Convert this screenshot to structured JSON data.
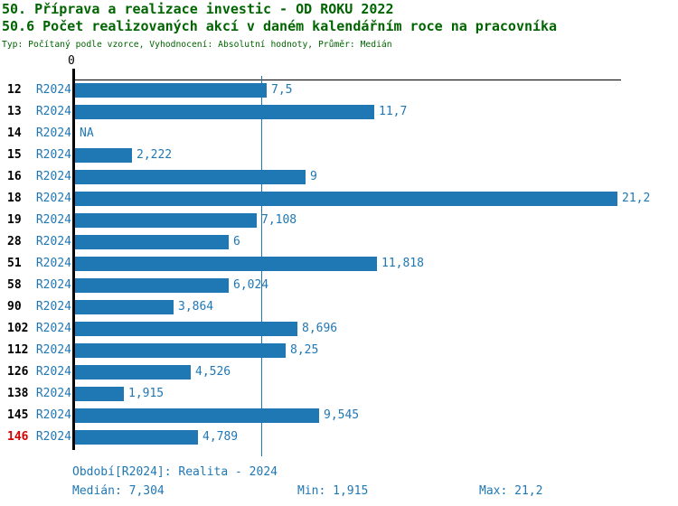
{
  "header": {
    "title_line1": "50. Příprava a realizace investic - OD ROKU 2022",
    "title_line2": "50.6 Počet realizovaných akcí v daném kalendářním roce na pracovníka",
    "subtitle": "Typ: Počítaný podle vzorce, Vyhodnocení: Absolutní hodnoty, Průměr: Medián"
  },
  "colors": {
    "heading_green": "#006400",
    "bar_blue": "#1F77B4",
    "alert_red": "#D80000",
    "axis_black": "#000000"
  },
  "chart_data": {
    "type": "bar",
    "orientation": "horizontal",
    "axis_zero_label": "0",
    "series_label": "R2024",
    "categories": [
      "12",
      "13",
      "14",
      "15",
      "16",
      "18",
      "19",
      "28",
      "51",
      "58",
      "90",
      "102",
      "112",
      "126",
      "138",
      "145",
      "146"
    ],
    "values": [
      7.5,
      11.7,
      null,
      2.222,
      9,
      21.2,
      7.108,
      6,
      11.818,
      6.024,
      3.864,
      8.696,
      8.25,
      4.526,
      1.915,
      9.545,
      4.789
    ],
    "value_labels": [
      "7,5",
      "11,7",
      "NA",
      "2,222",
      "9",
      "21,2",
      "7,108",
      "6",
      "11,818",
      "6,024",
      "3,864",
      "8,696",
      "8,25",
      "4,526",
      "1,915",
      "9,545",
      "4,789"
    ],
    "highlighted_category": "146",
    "xlim": [
      0,
      21.2
    ],
    "median_line_value": 7.304,
    "min_value": 1.915,
    "max_value": 21.2,
    "grid": false,
    "legend": false
  },
  "footer": {
    "period": "Období[R2024]: Realita - 2024",
    "median": "Medián: 7,304",
    "min": "Min: 1,915",
    "max": "Max: 21,2"
  }
}
